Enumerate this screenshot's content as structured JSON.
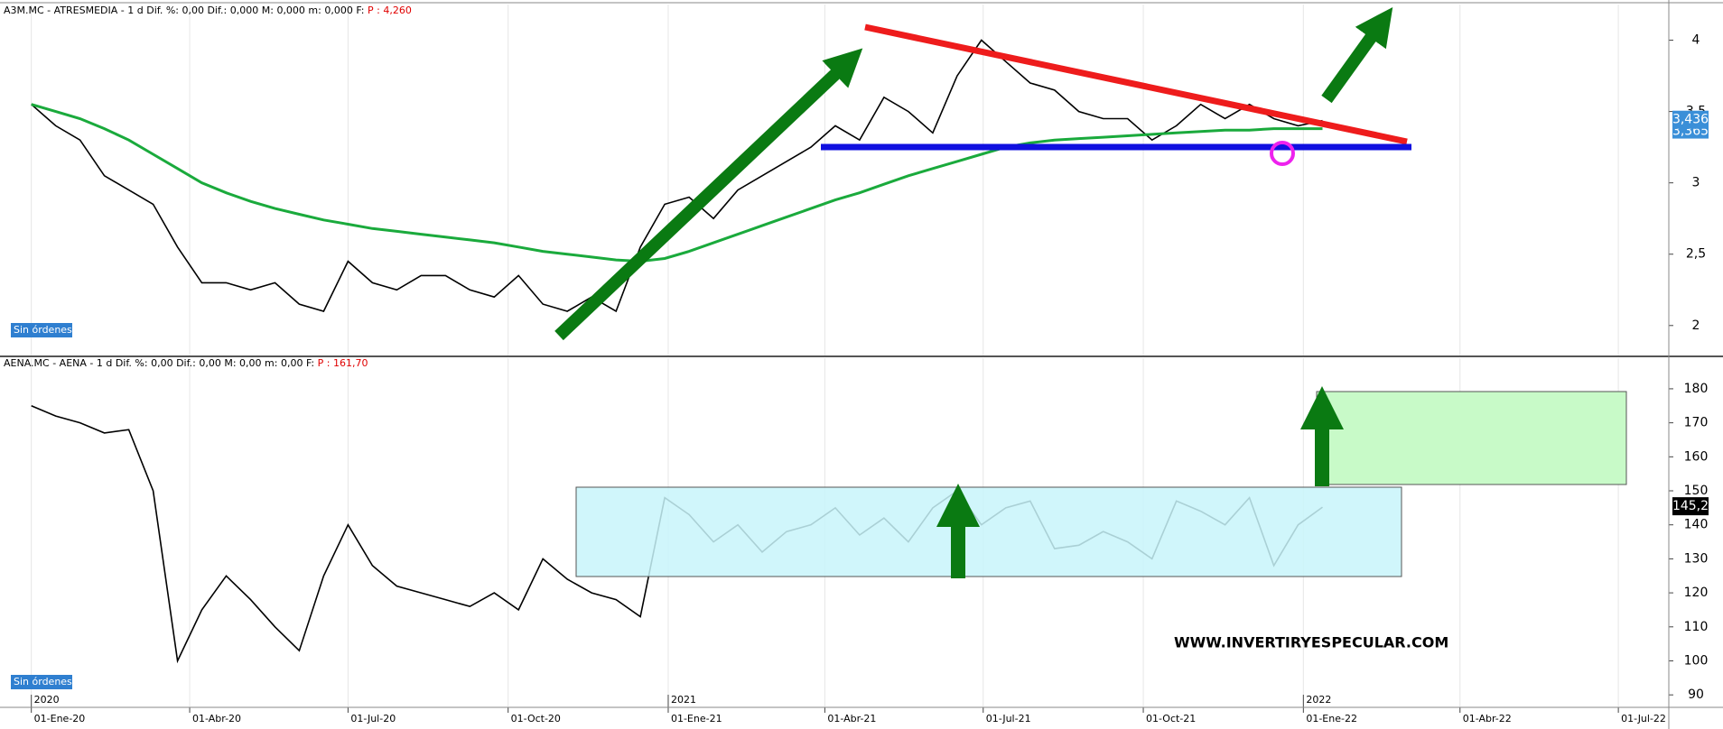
{
  "chart_data": [
    {
      "type": "line",
      "header": "A3M.MC - ATRESMEDIA -  1 d  Dif. %: 0,00  Dif.: 0,000  M: 0,000  m: 0,000  F: ",
      "header_price": "P : 4,260",
      "status": "Sin órdenes",
      "last_price": "3,436",
      "ma_price": "3,365",
      "x": [
        0,
        14,
        28,
        42,
        56,
        70,
        84,
        98,
        112,
        126,
        140,
        154,
        168,
        182,
        196,
        210,
        224,
        238,
        252,
        266,
        280,
        294,
        308,
        322,
        336,
        350,
        364,
        378,
        392,
        406,
        420,
        434,
        448,
        462,
        476,
        490,
        504,
        518,
        532,
        546,
        560,
        574,
        588,
        602,
        616,
        630,
        644,
        658,
        672,
        686,
        700,
        714,
        728,
        742
      ],
      "xlim": [
        -18,
        941
      ],
      "ylim": [
        1.79,
        4.25
      ],
      "yticks": [
        {
          "value": 2,
          "label": "2"
        },
        {
          "value": 2.5,
          "label": "2,5"
        },
        {
          "value": 3,
          "label": "3"
        },
        {
          "value": 3.5,
          "label": "3,5"
        },
        {
          "value": 4,
          "label": "4"
        }
      ],
      "series": [
        {
          "color": "#000000",
          "values": [
            3.55,
            3.4,
            3.3,
            3.05,
            2.95,
            2.85,
            2.55,
            2.3,
            2.3,
            2.25,
            2.3,
            2.15,
            2.1,
            2.45,
            2.3,
            2.25,
            2.35,
            2.35,
            2.25,
            2.2,
            2.35,
            2.15,
            2.1,
            2.2,
            2.1,
            2.55,
            2.85,
            2.9,
            2.75,
            2.95,
            3.05,
            3.15,
            3.25,
            3.4,
            3.3,
            3.6,
            3.5,
            3.35,
            3.75,
            4.0,
            3.85,
            3.7,
            3.65,
            3.5,
            3.45,
            3.45,
            3.3,
            3.4,
            3.55,
            3.45,
            3.55,
            3.45,
            3.4,
            3.436
          ]
        },
        {
          "color": "#1aaa3c",
          "values": [
            3.55,
            3.5,
            3.45,
            3.38,
            3.3,
            3.2,
            3.1,
            3.0,
            2.93,
            2.87,
            2.82,
            2.78,
            2.74,
            2.71,
            2.68,
            2.66,
            2.64,
            2.62,
            2.6,
            2.58,
            2.55,
            2.52,
            2.5,
            2.48,
            2.46,
            2.45,
            2.47,
            2.52,
            2.58,
            2.64,
            2.7,
            2.76,
            2.82,
            2.88,
            2.93,
            2.99,
            3.05,
            3.1,
            3.15,
            3.2,
            3.25,
            3.28,
            3.3,
            3.31,
            3.32,
            3.33,
            3.34,
            3.35,
            3.36,
            3.37,
            3.37,
            3.38,
            3.38,
            3.38
          ]
        }
      ]
    },
    {
      "type": "line",
      "header": "AENA.MC - AENA -  1 d  Dif. %: 0,00  Dif.: 0,00  M: 0,00  m: 0,00  F: ",
      "header_price": "P : 161,70",
      "status": "Sin órdenes",
      "last_price": "145,2",
      "watermark": "WWW.INVERTIRYESPECULAR.COM",
      "x": [
        0,
        14,
        28,
        42,
        56,
        70,
        84,
        98,
        112,
        126,
        140,
        154,
        168,
        182,
        196,
        210,
        224,
        238,
        252,
        266,
        280,
        294,
        308,
        322,
        336,
        350,
        364,
        378,
        392,
        406,
        420,
        434,
        448,
        462,
        476,
        490,
        504,
        518,
        532,
        546,
        560,
        574,
        588,
        602,
        616,
        630,
        644,
        658,
        672,
        686,
        700,
        714,
        728,
        742
      ],
      "xlim": [
        -18,
        941
      ],
      "xticks": [
        {
          "value": 0,
          "label": "01-Ene-20"
        },
        {
          "value": 91,
          "label": "01-Abr-20"
        },
        {
          "value": 182,
          "label": "01-Jul-20"
        },
        {
          "value": 274,
          "label": "01-Oct-20"
        },
        {
          "value": 366,
          "label": "01-Ene-21"
        },
        {
          "value": 456,
          "label": "01-Abr-21"
        },
        {
          "value": 547,
          "label": "01-Jul-21"
        },
        {
          "value": 639,
          "label": "01-Oct-21"
        },
        {
          "value": 731,
          "label": "01-Ene-22"
        },
        {
          "value": 821,
          "label": "01-Abr-22"
        },
        {
          "value": 912,
          "label": "01-Jul-22"
        }
      ],
      "year_markers": [
        {
          "value": 0,
          "label": "2020"
        },
        {
          "value": 366,
          "label": "2021"
        },
        {
          "value": 731,
          "label": "2022"
        }
      ],
      "ylim": [
        86.6,
        189
      ],
      "yticks": [
        90,
        100,
        110,
        120,
        130,
        140,
        150,
        160,
        170,
        180
      ],
      "series": [
        {
          "color": "#000000",
          "values": [
            175,
            172,
            170,
            167,
            168,
            150,
            100,
            115,
            125,
            118,
            110,
            103,
            125,
            140,
            128,
            122,
            120,
            118,
            116,
            120,
            115,
            130,
            124,
            120,
            118,
            113,
            148,
            143,
            135,
            140,
            132,
            138,
            140,
            145,
            137,
            142,
            135,
            145,
            150,
            140,
            145,
            147,
            133,
            134,
            138,
            135,
            130,
            147,
            144,
            140,
            148,
            128,
            140,
            145.2
          ]
        }
      ]
    }
  ]
}
